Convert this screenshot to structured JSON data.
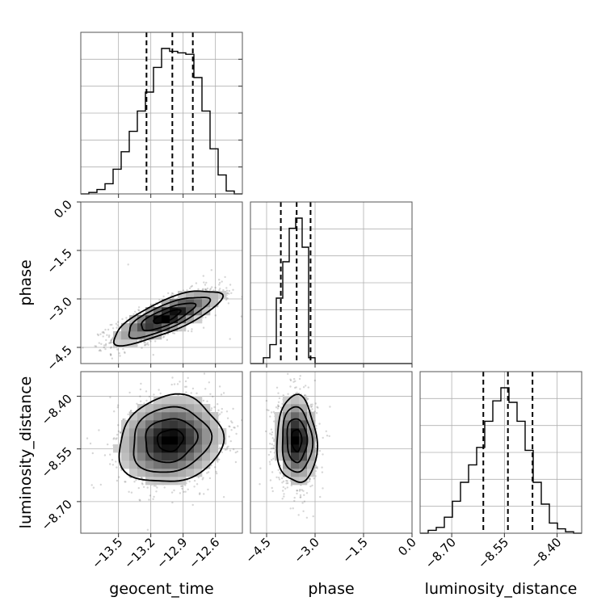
{
  "chart_data": {
    "type": "corner",
    "parameters": [
      "geocent_time",
      "phase",
      "luminosity_distance"
    ],
    "ranges": {
      "geocent_time": [
        -13.85,
        -12.35
      ],
      "phase": [
        -5.0,
        0.0
      ],
      "luminosity_distance": [
        -8.79,
        -8.33
      ]
    },
    "ticks": {
      "geocent_time": [
        -13.5,
        -13.2,
        -12.9,
        -12.6
      ],
      "phase": [
        -4.5,
        -3.0,
        -1.5,
        0.0
      ],
      "luminosity_distance": [
        -8.7,
        -8.55,
        -8.4
      ]
    },
    "tick_labels": {
      "geocent_time": [
        "−13.5",
        "−13.2",
        "−12.9",
        "−12.6"
      ],
      "phase": [
        "−4.5",
        "−3.0",
        "−1.5",
        "0.0"
      ],
      "luminosity_distance": [
        "−8.70",
        "−8.55",
        "−8.40"
      ]
    },
    "marginals": {
      "geocent_time": {
        "bin_edges": [
          -13.85,
          -13.775,
          -13.7,
          -13.625,
          -13.55,
          -13.475,
          -13.4,
          -13.325,
          -13.25,
          -13.175,
          -13.1,
          -13.025,
          -12.95,
          -12.875,
          -12.8,
          -12.725,
          -12.65,
          -12.575,
          -12.5,
          -12.425,
          -12.35
        ],
        "counts": [
          0,
          0.01,
          0.03,
          0.07,
          0.17,
          0.29,
          0.43,
          0.57,
          0.7,
          0.87,
          1.0,
          0.98,
          0.97,
          0.96,
          0.8,
          0.57,
          0.31,
          0.13,
          0.02,
          0.0
        ],
        "quantiles": [
          -13.24,
          -13.0,
          -12.81
        ]
      },
      "phase": {
        "bin_edges": [
          -5.0,
          -4.8,
          -4.6,
          -4.4,
          -4.2,
          -4.0,
          -3.8,
          -3.6,
          -3.4,
          -3.2,
          -3.0,
          -2.8,
          -2.6,
          -2.4,
          -2.2,
          -2.0,
          -1.8,
          -1.6,
          -1.4,
          -1.2,
          -1.0,
          -0.8,
          -0.6,
          -0.4,
          -0.2,
          0.0
        ],
        "counts": [
          0,
          0,
          0.04,
          0.13,
          0.45,
          0.7,
          0.93,
          1.0,
          0.8,
          0.04,
          0,
          0,
          0,
          0,
          0,
          0,
          0,
          0,
          0,
          0,
          0,
          0,
          0,
          0,
          0
        ],
        "quantiles": [
          -4.06,
          -3.57,
          -3.14
        ]
      },
      "luminosity_distance": {
        "bin_edges": [
          -8.79,
          -8.767,
          -8.744,
          -8.721,
          -8.698,
          -8.675,
          -8.652,
          -8.629,
          -8.606,
          -8.583,
          -8.56,
          -8.537,
          -8.514,
          -8.491,
          -8.468,
          -8.445,
          -8.422,
          -8.399,
          -8.376,
          -8.353,
          -8.33
        ],
        "counts": [
          0,
          0.02,
          0.04,
          0.11,
          0.22,
          0.35,
          0.47,
          0.59,
          0.77,
          0.91,
          1.0,
          0.9,
          0.77,
          0.57,
          0.35,
          0.2,
          0.07,
          0.03,
          0.01,
          0
        ],
        "quantiles": [
          -8.61,
          -8.54,
          -8.47
        ]
      }
    },
    "pairs": [
      {
        "x": "geocent_time",
        "y": "phase",
        "mean": [
          -13.05,
          -3.55
        ],
        "sd": [
          0.25,
          0.42
        ],
        "corr": 0.78
      },
      {
        "x": "geocent_time",
        "y": "luminosity_distance",
        "mean": [
          -13.02,
          -8.525
        ],
        "sd": [
          0.24,
          0.062
        ],
        "corr": 0.12
      },
      {
        "x": "phase",
        "y": "luminosity_distance",
        "mean": [
          -3.57,
          -8.525
        ],
        "sd": [
          0.31,
          0.062
        ],
        "corr": -0.05
      }
    ],
    "grid": true
  }
}
